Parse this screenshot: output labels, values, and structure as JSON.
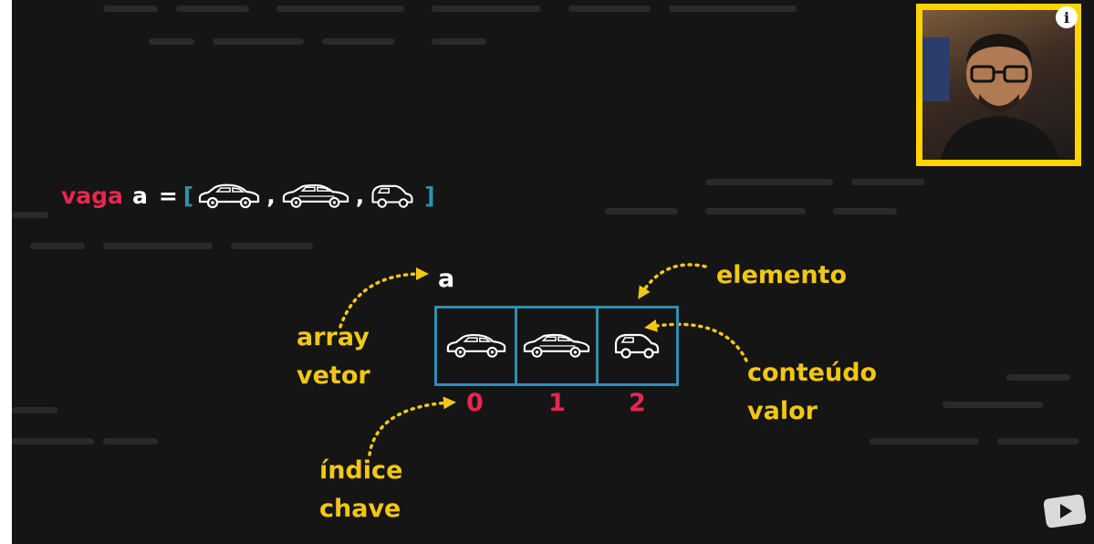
{
  "code": {
    "keyword": "vaga",
    "variable": "a",
    "equals": "=",
    "open_bracket": "[",
    "close_bracket": "]",
    "comma": ","
  },
  "diagram": {
    "array_name": "a",
    "labels": {
      "array": "array",
      "vetor": "vetor",
      "elemento": "elemento",
      "conteudo": "conteúdo",
      "valor": "valor",
      "indice": "índice",
      "chave": "chave"
    },
    "indices": [
      "0",
      "1",
      "2"
    ],
    "cells": [
      {
        "icon": "sedan-car-icon"
      },
      {
        "icon": "hatchback-car-icon"
      },
      {
        "icon": "small-car-icon"
      }
    ]
  },
  "colors": {
    "keyword": "#e8264f",
    "bracket": "#2e8fb0",
    "label": "#f2c714",
    "index": "#e8264f",
    "webcam_border": "#ffd400"
  },
  "overlay": {
    "info_icon": "info-icon",
    "logo_icon": "play-logo-icon",
    "webcam": "presenter-webcam"
  }
}
